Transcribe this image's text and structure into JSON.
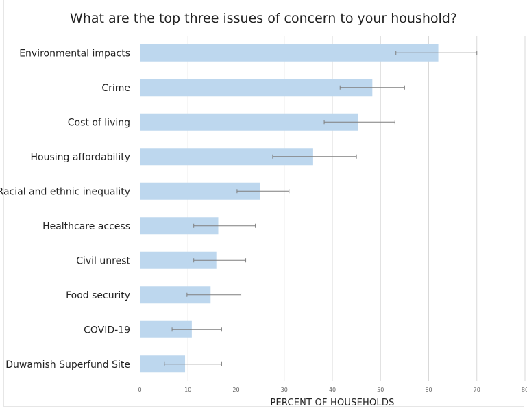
{
  "chart_data": {
    "type": "bar",
    "orientation": "horizontal",
    "title": "What are the top three issues of concern to your houshold?",
    "xlabel": "PERCENT OF HOUSEHOLDS",
    "ylabel": "",
    "xlim": [
      0,
      80
    ],
    "xticks": [
      "0",
      "10",
      "20",
      "30",
      "40",
      "50",
      "60",
      "70",
      "80"
    ],
    "grid": "vertical",
    "legend": "none",
    "bar_color": "#bdd7ee",
    "error_color": "#7f7f7f",
    "categories": [
      "Environmental impacts",
      "Crime",
      "Cost of living",
      "Housing affordability",
      "Racial and ethnic inequality",
      "Healthcare access",
      "Civil unrest",
      "Food security",
      "COVID-19",
      "Duwamish Superfund Site"
    ],
    "values": [
      62,
      48.3,
      45.4,
      36,
      25,
      16.3,
      15.9,
      14.7,
      10.8,
      9.4
    ],
    "error_low": [
      53.2,
      41.6,
      38.3,
      27.6,
      20.2,
      11.2,
      11.2,
      9.8,
      6.7,
      5.1
    ],
    "error_high": [
      70,
      55,
      53,
      45,
      31,
      24,
      22,
      21,
      17,
      17
    ]
  }
}
